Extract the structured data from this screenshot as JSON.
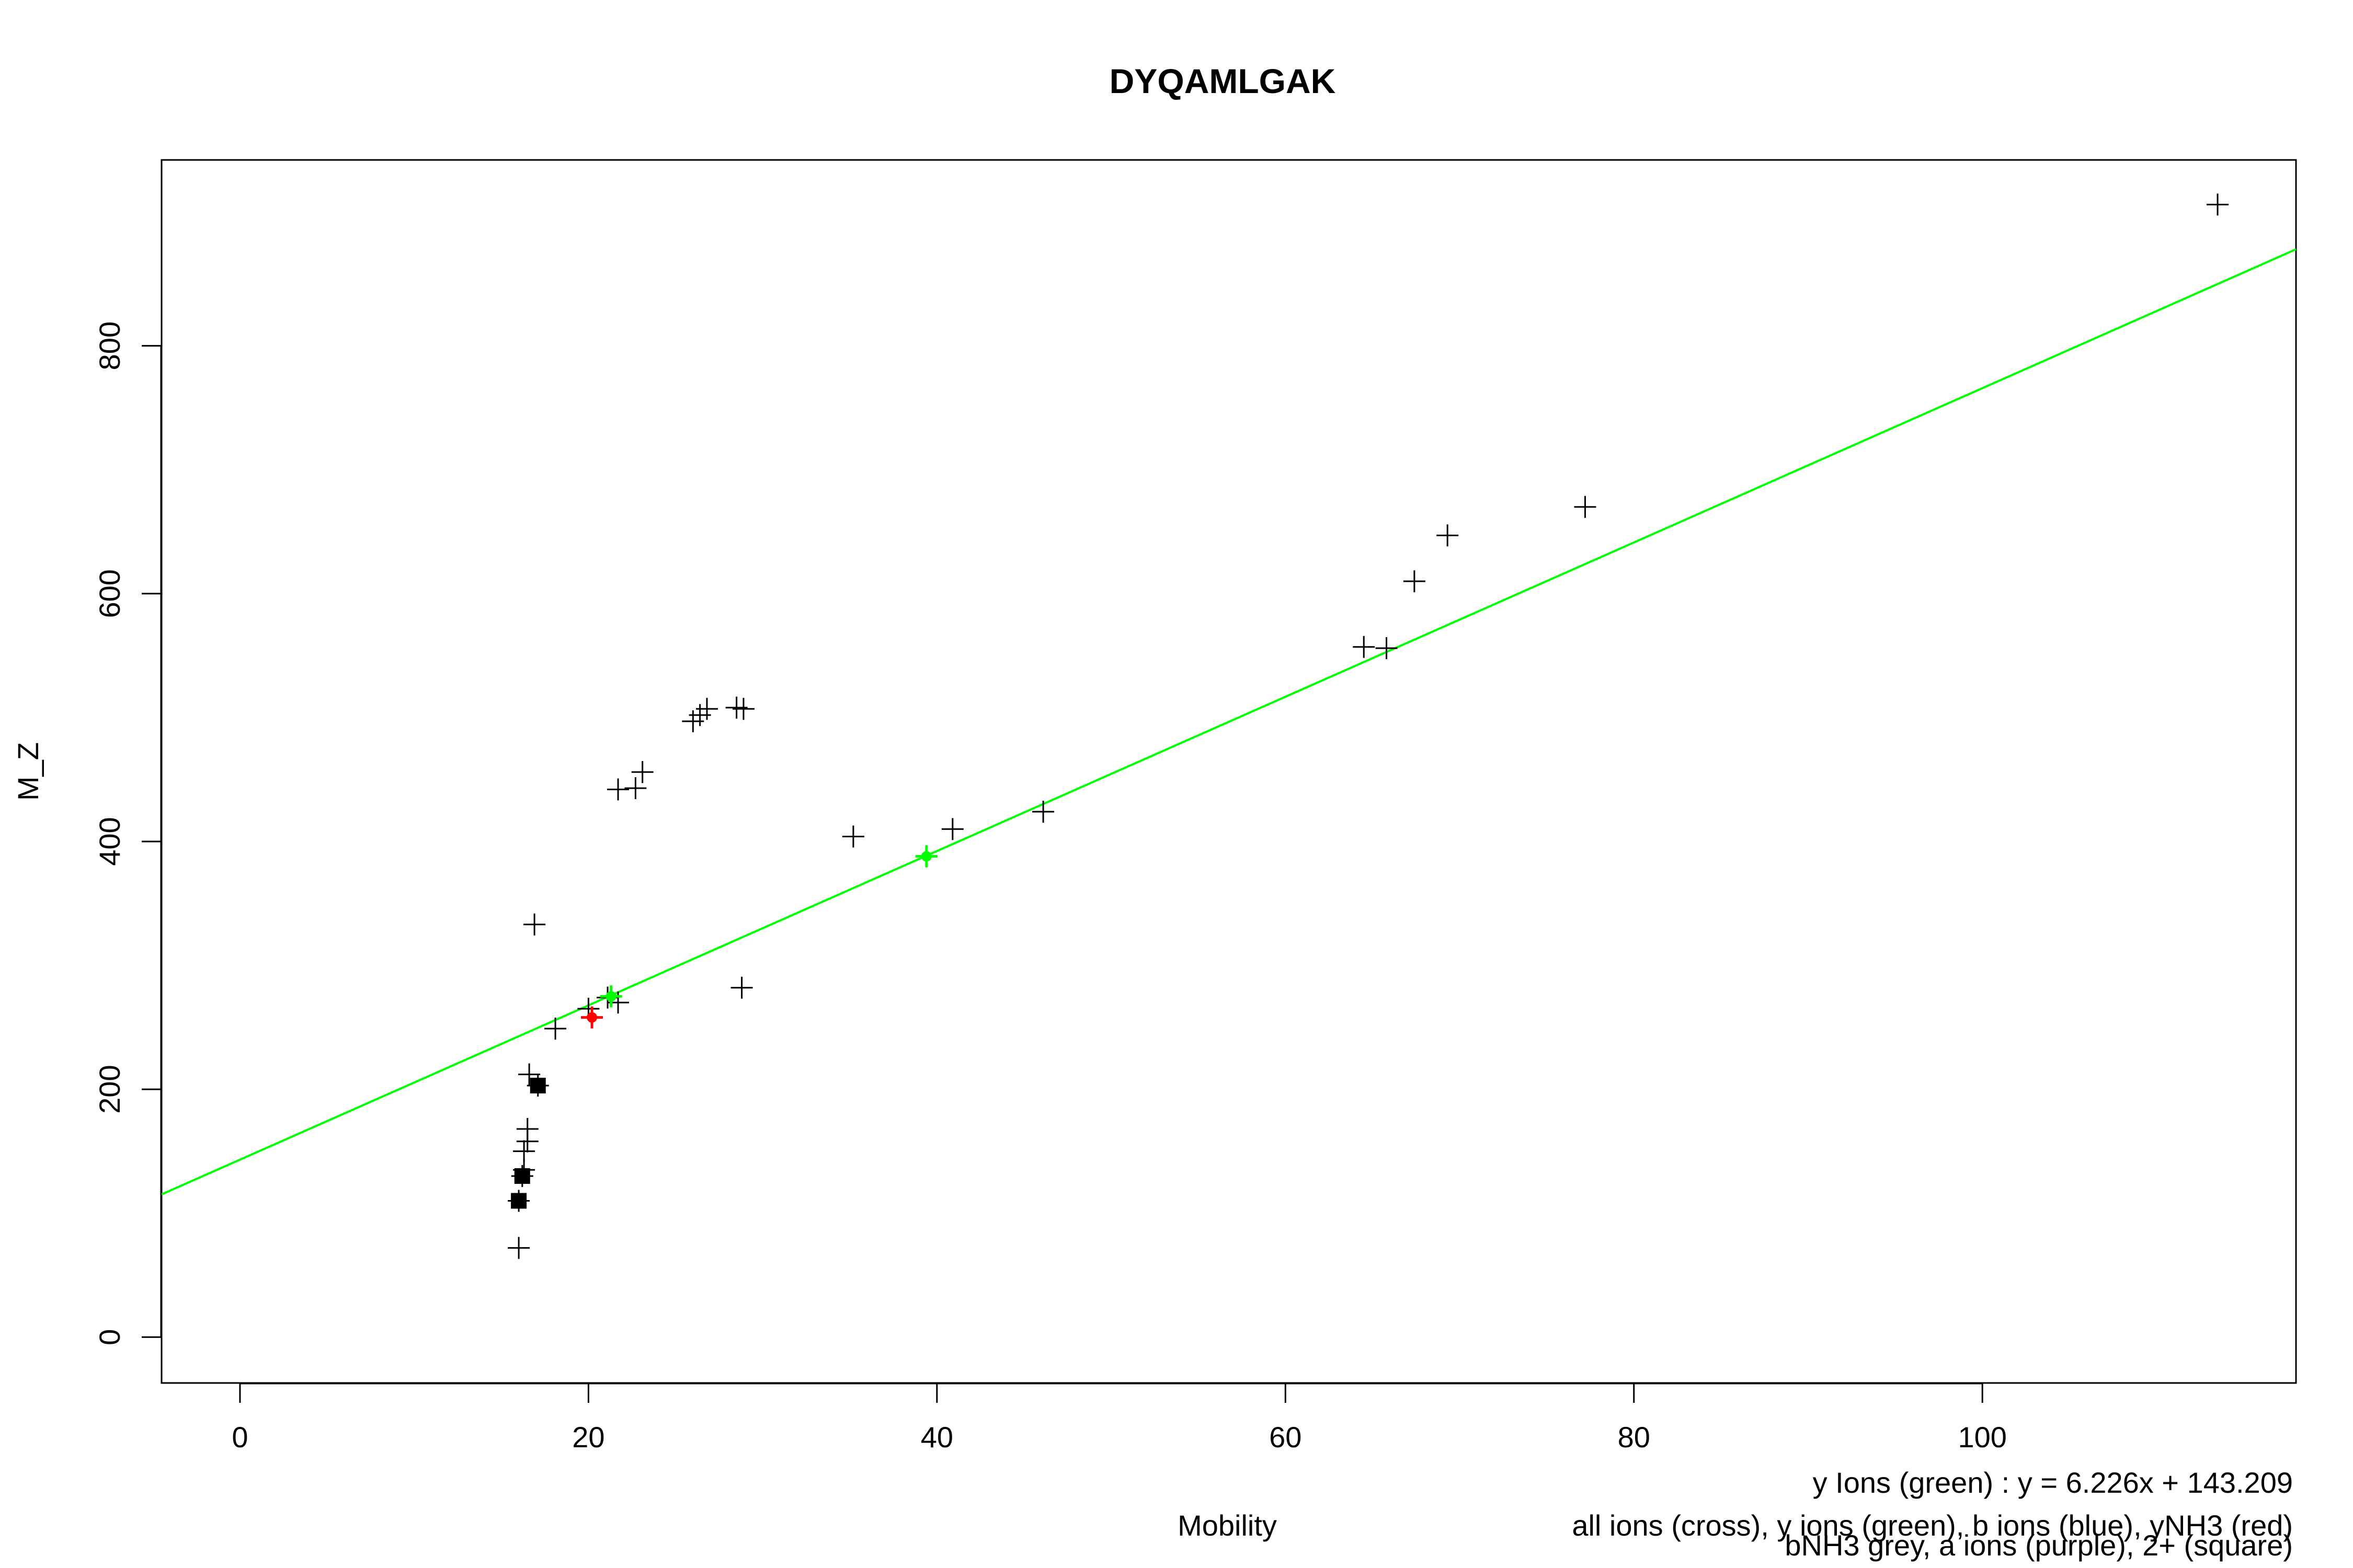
{
  "chart_data": {
    "type": "scatter",
    "title": "DYQAMLGAK",
    "xlabel": "Mobility",
    "ylabel": "M_Z",
    "xlim": [
      -4.5,
      118
    ],
    "ylim": [
      -37,
      950
    ],
    "x_ticks": [
      0,
      20,
      40,
      60,
      80,
      100
    ],
    "y_ticks": [
      0,
      200,
      400,
      600,
      800
    ],
    "x_tick_labels": [
      "0",
      "20",
      "40",
      "60",
      "80",
      "100"
    ],
    "y_tick_labels": [
      "0",
      "200",
      "400",
      "600",
      "800"
    ],
    "grid": false,
    "colors": {
      "all_ions": "#000000",
      "y_ions": "#00ff00",
      "yNH3": "#ff0000",
      "fit_line": "#00ff00",
      "frame": "#000000"
    },
    "fit_line": {
      "slope": 6.226,
      "intercept": 143.209
    },
    "legend_lines": [
      "y Ions (green) : y = 6.226x + 143.209",
      "all ions (cross), y ions (green), b ions (blue), yNH3 (red)",
      "bNH3 grey, a ions (purple), 2+ (square)"
    ],
    "series": [
      {
        "name": "all ions",
        "marker": "cross",
        "color": "#000000",
        "points": [
          [
            16.0,
            72
          ],
          [
            16.0,
            110
          ],
          [
            16.2,
            130
          ],
          [
            16.3,
            135
          ],
          [
            16.3,
            150
          ],
          [
            16.5,
            158
          ],
          [
            16.5,
            168
          ],
          [
            16.6,
            212
          ],
          [
            17.1,
            203
          ],
          [
            16.9,
            333
          ],
          [
            18.1,
            249
          ],
          [
            20.0,
            265
          ],
          [
            21.1,
            274
          ],
          [
            21.7,
            270
          ],
          [
            21.7,
            442
          ],
          [
            22.7,
            443
          ],
          [
            23.1,
            456
          ],
          [
            26.0,
            497
          ],
          [
            26.4,
            502
          ],
          [
            26.8,
            507
          ],
          [
            28.5,
            508
          ],
          [
            28.9,
            507
          ],
          [
            28.8,
            282
          ],
          [
            35.2,
            404
          ],
          [
            39.4,
            388
          ],
          [
            40.9,
            410
          ],
          [
            46.1,
            424
          ],
          [
            64.5,
            557
          ],
          [
            65.8,
            556
          ],
          [
            67.4,
            610
          ],
          [
            69.3,
            647
          ],
          [
            77.2,
            670
          ],
          [
            113.5,
            914
          ]
        ]
      },
      {
        "name": "2+",
        "marker": "square",
        "color": "#000000",
        "points": [
          [
            16.0,
            110
          ],
          [
            16.2,
            130
          ],
          [
            17.1,
            203
          ]
        ]
      },
      {
        "name": "y ions",
        "marker": "cross",
        "color": "#00ff00",
        "points": [
          [
            21.3,
            275
          ],
          [
            39.4,
            388
          ]
        ]
      },
      {
        "name": "yNH3",
        "marker": "cross",
        "color": "#ff0000",
        "points": [
          [
            20.2,
            258
          ]
        ]
      }
    ]
  }
}
